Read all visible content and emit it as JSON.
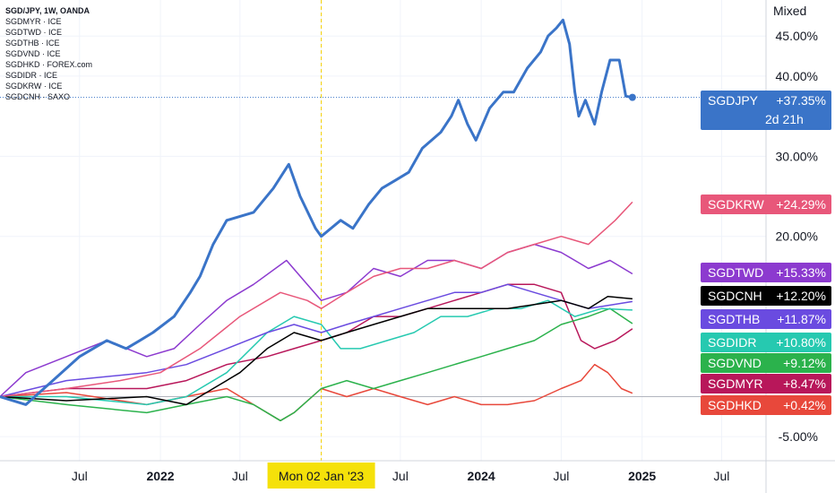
{
  "legend": [
    "SGD/JPY, 1W, OANDA",
    "SGDMYR · ICE",
    "SGDTWD · ICE",
    "SGDTHB · ICE",
    "SGDVND · ICE",
    "SGDHKD · FOREX.com",
    "SGDIDR · ICE",
    "SGDKRW · ICE",
    "SGDCNH · SAXO"
  ],
  "scale_button": "Mixed",
  "crosshair_label": "Mon 02 Jan '23",
  "jpy_countdown": "2d 21h",
  "chart_data": {
    "type": "line",
    "title": "SGD/JPY, 1W, OANDA",
    "x_ticks": [
      "Jul",
      "2022",
      "Jul",
      "Mon 02 Jan '23",
      "Jul",
      "2024",
      "Jul",
      "2025",
      "Jul"
    ],
    "x_tick_dates": [
      "2021-07-01",
      "2022-01-01",
      "2022-07-01",
      "2023-01-02",
      "2023-07-01",
      "2024-01-01",
      "2024-07-01",
      "2025-01-01",
      "2025-07-01"
    ],
    "x_range": [
      "2021-01-01",
      "2025-10-10"
    ],
    "y_ticks": [
      "45.00%",
      "40.00%",
      "30.00%",
      "20.00%",
      "-5.00%"
    ],
    "y_tick_values": [
      45,
      40,
      30,
      20,
      -5
    ],
    "y_range": [
      -8,
      49.5
    ],
    "grid": true,
    "series": [
      {
        "name": "SGDJPY",
        "color": "#3a74c8",
        "width": 3,
        "label": "+37.35%",
        "last": 37.35,
        "points": [
          [
            "2021-01-01",
            0
          ],
          [
            "2021-03-01",
            -1
          ],
          [
            "2021-05-01",
            2
          ],
          [
            "2021-07-01",
            5
          ],
          [
            "2021-09-01",
            7
          ],
          [
            "2021-10-15",
            6
          ],
          [
            "2021-11-15",
            7
          ],
          [
            "2021-12-15",
            8
          ],
          [
            "2022-02-01",
            10
          ],
          [
            "2022-03-10",
            13
          ],
          [
            "2022-04-01",
            15
          ],
          [
            "2022-05-01",
            19
          ],
          [
            "2022-06-01",
            22
          ],
          [
            "2022-08-01",
            23
          ],
          [
            "2022-09-15",
            26
          ],
          [
            "2022-10-20",
            29
          ],
          [
            "2022-11-15",
            25
          ],
          [
            "2022-12-20",
            21
          ],
          [
            "2023-01-02",
            20
          ],
          [
            "2023-02-15",
            22
          ],
          [
            "2023-03-15",
            21
          ],
          [
            "2023-04-20",
            24
          ],
          [
            "2023-05-20",
            26
          ],
          [
            "2023-06-20",
            27
          ],
          [
            "2023-07-20",
            28
          ],
          [
            "2023-08-20",
            31
          ],
          [
            "2023-10-01",
            33
          ],
          [
            "2023-10-25",
            35
          ],
          [
            "2023-11-10",
            37
          ],
          [
            "2023-12-01",
            34
          ],
          [
            "2023-12-20",
            32
          ],
          [
            "2024-01-20",
            36
          ],
          [
            "2024-02-20",
            38
          ],
          [
            "2024-03-15",
            38
          ],
          [
            "2024-04-15",
            41
          ],
          [
            "2024-05-15",
            43
          ],
          [
            "2024-06-01",
            45
          ],
          [
            "2024-06-20",
            46
          ],
          [
            "2024-07-05",
            47
          ],
          [
            "2024-07-20",
            44
          ],
          [
            "2024-08-01",
            38
          ],
          [
            "2024-08-10",
            35
          ],
          [
            "2024-08-25",
            37
          ],
          [
            "2024-09-15",
            34
          ],
          [
            "2024-10-01",
            38
          ],
          [
            "2024-10-20",
            42
          ],
          [
            "2024-11-10",
            42
          ],
          [
            "2024-11-25",
            37.5
          ],
          [
            "2024-12-10",
            37.35
          ]
        ]
      },
      {
        "name": "SGDKRW",
        "color": "#e8577a",
        "width": 1.5,
        "label": "+24.29%",
        "last": 24.29,
        "points": [
          [
            "2021-01-01",
            0
          ],
          [
            "2021-06-01",
            1
          ],
          [
            "2021-10-01",
            2
          ],
          [
            "2022-01-01",
            3
          ],
          [
            "2022-04-01",
            6
          ],
          [
            "2022-07-01",
            10
          ],
          [
            "2022-10-01",
            13
          ],
          [
            "2022-12-01",
            12
          ],
          [
            "2023-01-02",
            11
          ],
          [
            "2023-03-01",
            13
          ],
          [
            "2023-05-01",
            15
          ],
          [
            "2023-07-01",
            16
          ],
          [
            "2023-09-01",
            16
          ],
          [
            "2023-11-01",
            17
          ],
          [
            "2024-01-01",
            16
          ],
          [
            "2024-03-01",
            18
          ],
          [
            "2024-05-01",
            19
          ],
          [
            "2024-07-01",
            20
          ],
          [
            "2024-09-01",
            19
          ],
          [
            "2024-11-01",
            22
          ],
          [
            "2024-12-10",
            24.29
          ]
        ]
      },
      {
        "name": "SGDTWD",
        "color": "#8c3acf",
        "width": 1.5,
        "label": "+15.33%",
        "last": 15.33,
        "points": [
          [
            "2021-01-01",
            0
          ],
          [
            "2021-03-01",
            3
          ],
          [
            "2021-06-01",
            5
          ],
          [
            "2021-09-01",
            7
          ],
          [
            "2021-12-01",
            5
          ],
          [
            "2022-02-01",
            6
          ],
          [
            "2022-04-01",
            9
          ],
          [
            "2022-06-01",
            12
          ],
          [
            "2022-08-01",
            14
          ],
          [
            "2022-10-15",
            17
          ],
          [
            "2022-12-01",
            14
          ],
          [
            "2023-01-02",
            12
          ],
          [
            "2023-03-01",
            13
          ],
          [
            "2023-05-01",
            16
          ],
          [
            "2023-07-01",
            15
          ],
          [
            "2023-09-01",
            17
          ],
          [
            "2023-11-01",
            17
          ],
          [
            "2024-01-01",
            16
          ],
          [
            "2024-03-01",
            18
          ],
          [
            "2024-05-01",
            19
          ],
          [
            "2024-07-01",
            18
          ],
          [
            "2024-09-01",
            16
          ],
          [
            "2024-10-20",
            17
          ],
          [
            "2024-12-10",
            15.33
          ]
        ]
      },
      {
        "name": "SGDCNH",
        "color": "#000000",
        "width": 1.5,
        "label": "+12.20%",
        "last": 12.2,
        "points": [
          [
            "2021-01-01",
            0
          ],
          [
            "2021-06-01",
            -0.5
          ],
          [
            "2021-12-01",
            0
          ],
          [
            "2022-03-01",
            -1
          ],
          [
            "2022-05-01",
            1
          ],
          [
            "2022-07-01",
            3
          ],
          [
            "2022-09-01",
            6
          ],
          [
            "2022-11-01",
            8
          ],
          [
            "2023-01-02",
            7
          ],
          [
            "2023-03-01",
            8
          ],
          [
            "2023-05-01",
            9
          ],
          [
            "2023-07-01",
            10
          ],
          [
            "2023-09-01",
            11
          ],
          [
            "2023-11-01",
            11
          ],
          [
            "2024-01-01",
            11
          ],
          [
            "2024-03-01",
            11
          ],
          [
            "2024-05-01",
            11.5
          ],
          [
            "2024-07-01",
            12
          ],
          [
            "2024-09-01",
            11
          ],
          [
            "2024-10-15",
            12.5
          ],
          [
            "2024-12-10",
            12.2
          ]
        ]
      },
      {
        "name": "SGDTHB",
        "color": "#6a4be0",
        "width": 1.5,
        "label": "+11.87%",
        "last": 11.87,
        "points": [
          [
            "2021-01-01",
            0
          ],
          [
            "2021-06-01",
            2
          ],
          [
            "2021-12-01",
            3
          ],
          [
            "2022-03-01",
            4
          ],
          [
            "2022-06-01",
            6
          ],
          [
            "2022-09-01",
            8
          ],
          [
            "2022-11-01",
            9
          ],
          [
            "2023-01-02",
            8
          ],
          [
            "2023-03-01",
            9
          ],
          [
            "2023-05-01",
            10
          ],
          [
            "2023-07-01",
            11
          ],
          [
            "2023-09-01",
            12
          ],
          [
            "2023-11-01",
            13
          ],
          [
            "2024-01-01",
            13
          ],
          [
            "2024-03-01",
            14
          ],
          [
            "2024-05-01",
            13
          ],
          [
            "2024-07-01",
            12
          ],
          [
            "2024-09-01",
            11
          ],
          [
            "2024-12-10",
            11.87
          ]
        ]
      },
      {
        "name": "SGDIDR",
        "color": "#26c9b0",
        "width": 1.5,
        "label": "+10.80%",
        "last": 10.8,
        "points": [
          [
            "2021-01-01",
            0
          ],
          [
            "2021-06-01",
            0
          ],
          [
            "2021-12-01",
            -1
          ],
          [
            "2022-03-01",
            0
          ],
          [
            "2022-06-01",
            3
          ],
          [
            "2022-09-01",
            8
          ],
          [
            "2022-11-01",
            10
          ],
          [
            "2023-01-02",
            9
          ],
          [
            "2023-02-15",
            6
          ],
          [
            "2023-04-01",
            6
          ],
          [
            "2023-06-01",
            7
          ],
          [
            "2023-08-01",
            8
          ],
          [
            "2023-10-01",
            10
          ],
          [
            "2023-12-01",
            10
          ],
          [
            "2024-02-01",
            11
          ],
          [
            "2024-04-01",
            11
          ],
          [
            "2024-06-01",
            12
          ],
          [
            "2024-08-01",
            10
          ],
          [
            "2024-10-01",
            11
          ],
          [
            "2024-12-10",
            10.8
          ]
        ]
      },
      {
        "name": "SGDVND",
        "color": "#2bb24c",
        "width": 1.5,
        "label": "+9.12%",
        "last": 9.12,
        "points": [
          [
            "2021-01-01",
            0
          ],
          [
            "2021-06-01",
            -1
          ],
          [
            "2021-12-01",
            -2
          ],
          [
            "2022-03-01",
            -1
          ],
          [
            "2022-06-01",
            0
          ],
          [
            "2022-08-01",
            -1
          ],
          [
            "2022-10-01",
            -3
          ],
          [
            "2022-11-01",
            -2
          ],
          [
            "2023-01-02",
            1
          ],
          [
            "2023-03-01",
            2
          ],
          [
            "2023-05-01",
            1
          ],
          [
            "2023-07-01",
            2
          ],
          [
            "2023-09-01",
            3
          ],
          [
            "2023-11-01",
            4
          ],
          [
            "2024-01-01",
            5
          ],
          [
            "2024-03-01",
            6
          ],
          [
            "2024-05-01",
            7
          ],
          [
            "2024-07-01",
            9
          ],
          [
            "2024-09-01",
            10
          ],
          [
            "2024-10-20",
            11
          ],
          [
            "2024-12-10",
            9.12
          ]
        ]
      },
      {
        "name": "SGDMYR",
        "color": "#b8175a",
        "width": 1.5,
        "label": "+8.47%",
        "last": 8.47,
        "points": [
          [
            "2021-01-01",
            0
          ],
          [
            "2021-06-01",
            1
          ],
          [
            "2021-12-01",
            1
          ],
          [
            "2022-03-01",
            2
          ],
          [
            "2022-06-01",
            4
          ],
          [
            "2022-09-01",
            5
          ],
          [
            "2022-11-01",
            6
          ],
          [
            "2023-01-02",
            7
          ],
          [
            "2023-03-01",
            8
          ],
          [
            "2023-05-01",
            10
          ],
          [
            "2023-07-01",
            10
          ],
          [
            "2023-09-01",
            11
          ],
          [
            "2023-11-01",
            12
          ],
          [
            "2024-01-01",
            13
          ],
          [
            "2024-03-01",
            14
          ],
          [
            "2024-05-01",
            14
          ],
          [
            "2024-07-01",
            13
          ],
          [
            "2024-08-15",
            7
          ],
          [
            "2024-09-15",
            6
          ],
          [
            "2024-11-01",
            7
          ],
          [
            "2024-12-10",
            8.47
          ]
        ]
      },
      {
        "name": "SGDHKD",
        "color": "#e8483b",
        "width": 1.5,
        "label": "+0.42%",
        "last": 0.42,
        "points": [
          [
            "2021-01-01",
            0
          ],
          [
            "2021-06-01",
            0.5
          ],
          [
            "2021-12-01",
            -1
          ],
          [
            "2022-03-01",
            0
          ],
          [
            "2022-06-01",
            1
          ],
          [
            "2022-08-01",
            -1
          ],
          [
            "2022-10-01",
            -3
          ],
          [
            "2022-11-01",
            -2
          ],
          [
            "2023-01-02",
            1
          ],
          [
            "2023-03-01",
            0
          ],
          [
            "2023-05-01",
            1
          ],
          [
            "2023-07-01",
            0
          ],
          [
            "2023-09-01",
            -1
          ],
          [
            "2023-11-01",
            0
          ],
          [
            "2024-01-01",
            -1
          ],
          [
            "2024-03-01",
            -1
          ],
          [
            "2024-05-01",
            -0.5
          ],
          [
            "2024-07-01",
            1
          ],
          [
            "2024-08-15",
            2
          ],
          [
            "2024-09-15",
            4
          ],
          [
            "2024-10-15",
            3
          ],
          [
            "2024-11-15",
            1
          ],
          [
            "2024-12-10",
            0.42
          ]
        ]
      }
    ]
  }
}
